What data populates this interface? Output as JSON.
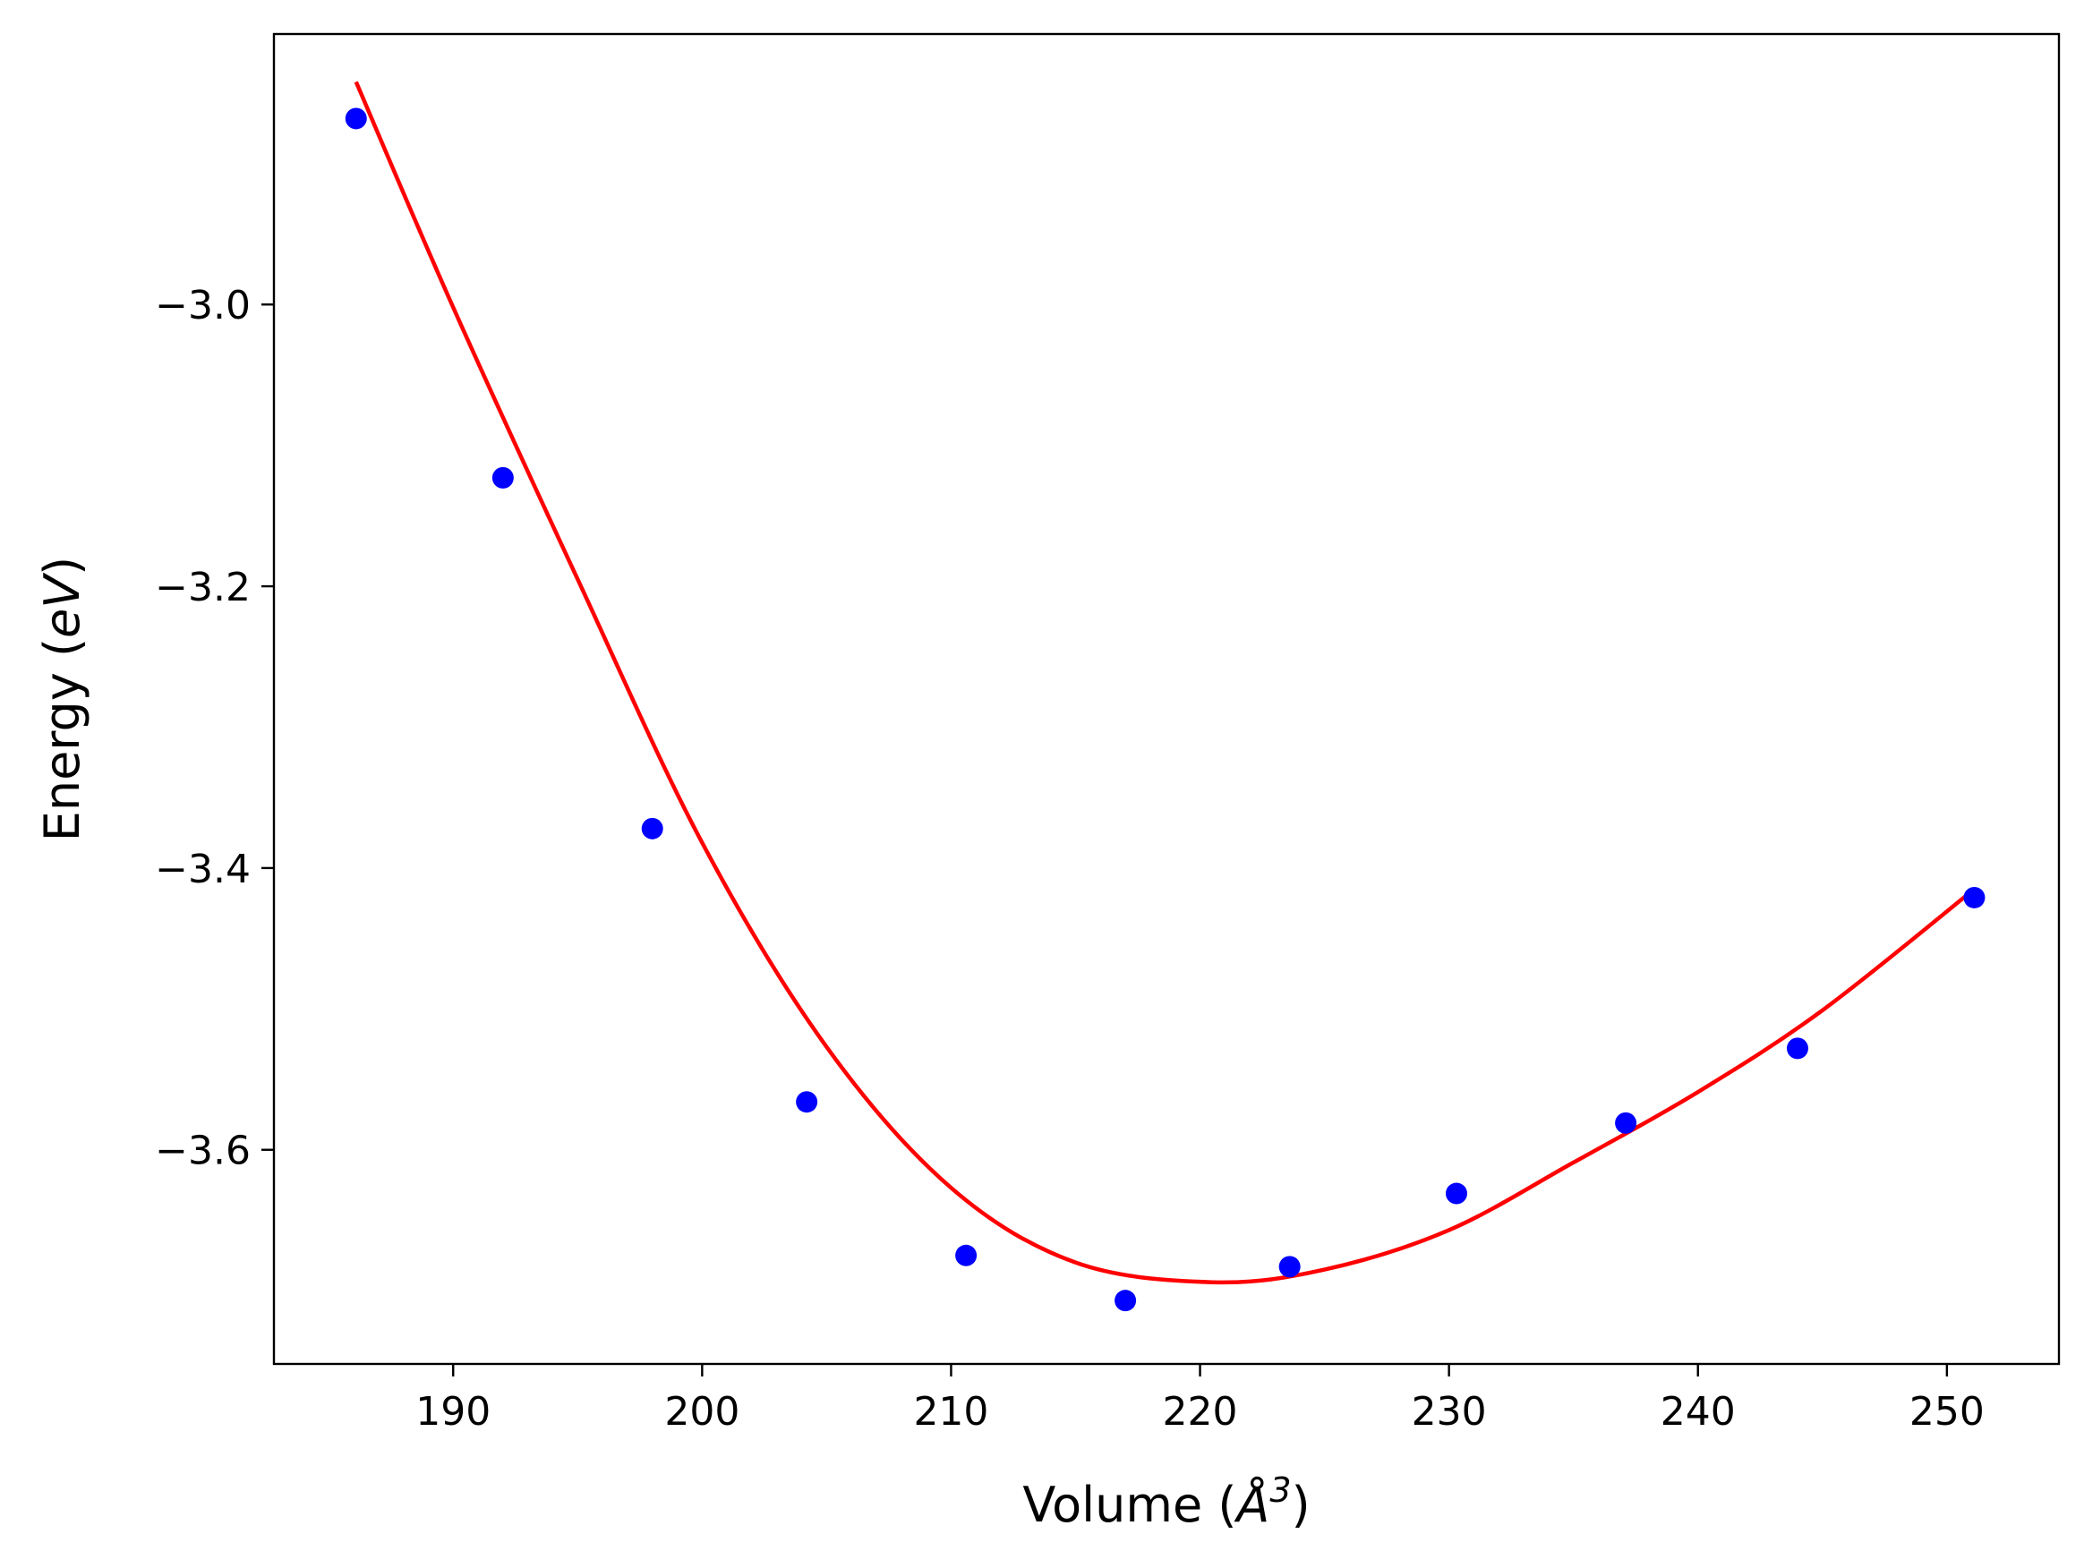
{
  "chart_data": {
    "type": "scatter",
    "xlabel_main": "Volume (",
    "xlabel_symbol": "Å",
    "xlabel_sup": "3",
    "xlabel_end": ")",
    "ylabel_main": "Energy (",
    "ylabel_unit": "eV",
    "ylabel_end": ")",
    "xlim": [
      182.8,
      254.5
    ],
    "ylim": [
      -3.752,
      -2.808
    ],
    "xticks": [
      190,
      200,
      210,
      220,
      230,
      240,
      250
    ],
    "xtick_labels": [
      "190",
      "200",
      "210",
      "220",
      "230",
      "240",
      "250"
    ],
    "yticks": [
      -3.6,
      -3.4,
      -3.2,
      -3.0
    ],
    "ytick_labels": [
      "−3.6",
      "−3.4",
      "−3.2",
      "−3.0"
    ],
    "grid": false,
    "series": [
      {
        "kind": "points",
        "color": "#0000ff",
        "x": [
          186.1,
          192.0,
          198.0,
          204.2,
          210.6,
          217.0,
          223.6,
          230.3,
          237.1,
          244.0,
          251.1
        ],
        "y": [
          -2.868,
          -3.123,
          -3.372,
          -3.566,
          -3.675,
          -3.707,
          -3.683,
          -3.631,
          -3.581,
          -3.528,
          -3.421
        ]
      },
      {
        "kind": "fit",
        "color": "#ff0000",
        "x": [
          186.1,
          190.0,
          195.0,
          200.0,
          205.0,
          210.0,
          215.0,
          220.5,
          225.0,
          230.0,
          235.0,
          240.0,
          245.0,
          251.1
        ],
        "y": [
          -2.842,
          -3.002,
          -3.195,
          -3.382,
          -3.527,
          -3.627,
          -3.68,
          -3.694,
          -3.685,
          -3.657,
          -3.609,
          -3.559,
          -3.501,
          -3.415
        ]
      }
    ]
  }
}
